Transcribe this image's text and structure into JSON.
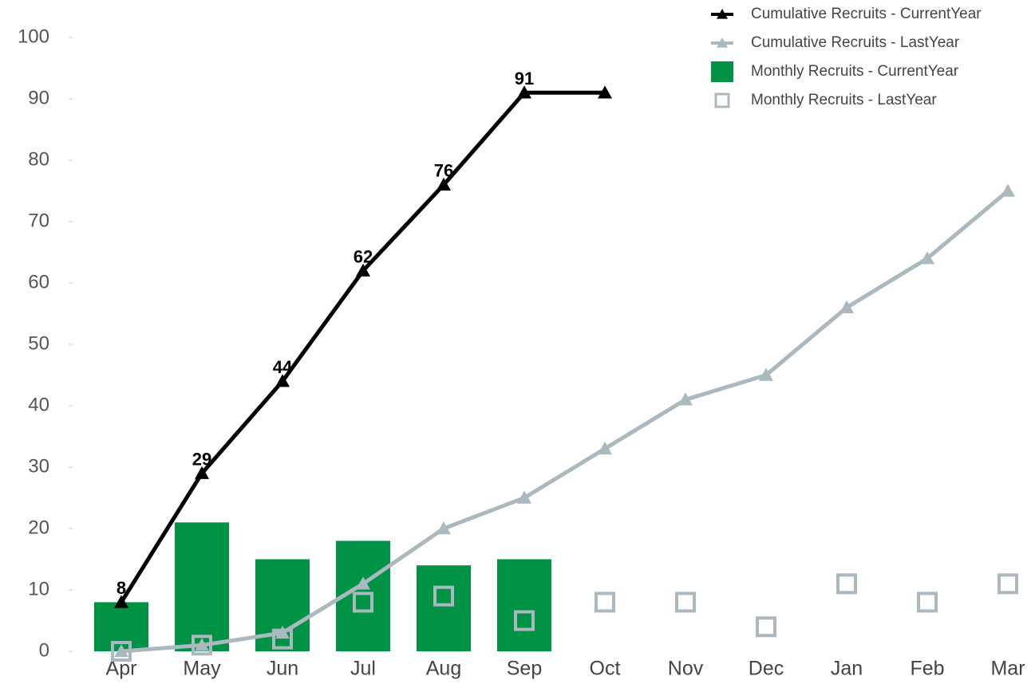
{
  "chart_data": {
    "type": "combo",
    "categories": [
      "Apr",
      "May",
      "Jun",
      "Jul",
      "Aug",
      "Sep",
      "Oct",
      "Nov",
      "Dec",
      "Jan",
      "Feb",
      "Mar"
    ],
    "ylim": [
      0,
      100
    ],
    "yticks": [
      0,
      10,
      20,
      30,
      40,
      50,
      60,
      70,
      80,
      90,
      100
    ],
    "grid": false,
    "legend": "top-right",
    "series": [
      {
        "name": "Cumulative Recruits - CurrentYear",
        "type": "line",
        "marker": "triangle",
        "color": "#000000",
        "values": [
          8,
          29,
          44,
          62,
          76,
          91,
          91,
          null,
          null,
          null,
          null,
          null
        ],
        "value_labels": [
          "8",
          "29",
          "44",
          "62",
          "76",
          "91",
          null,
          null,
          null,
          null,
          null,
          null
        ]
      },
      {
        "name": "Cumulative Recruits - LastYear",
        "type": "line",
        "marker": "triangle",
        "color": "#aab8bf",
        "values": [
          0,
          1,
          3,
          11,
          20,
          25,
          33,
          41,
          45,
          56,
          64,
          75
        ]
      },
      {
        "name": "Monthly Recruits - CurrentYear",
        "type": "bar",
        "color": "#009245",
        "values": [
          8,
          21,
          15,
          18,
          14,
          15,
          null,
          null,
          null,
          null,
          null,
          null
        ]
      },
      {
        "name": "Monthly Recruits - LastYear",
        "type": "square",
        "color": "#aab8bf",
        "values": [
          0,
          1,
          2,
          8,
          9,
          5,
          8,
          8,
          4,
          11,
          8,
          11
        ]
      }
    ]
  }
}
